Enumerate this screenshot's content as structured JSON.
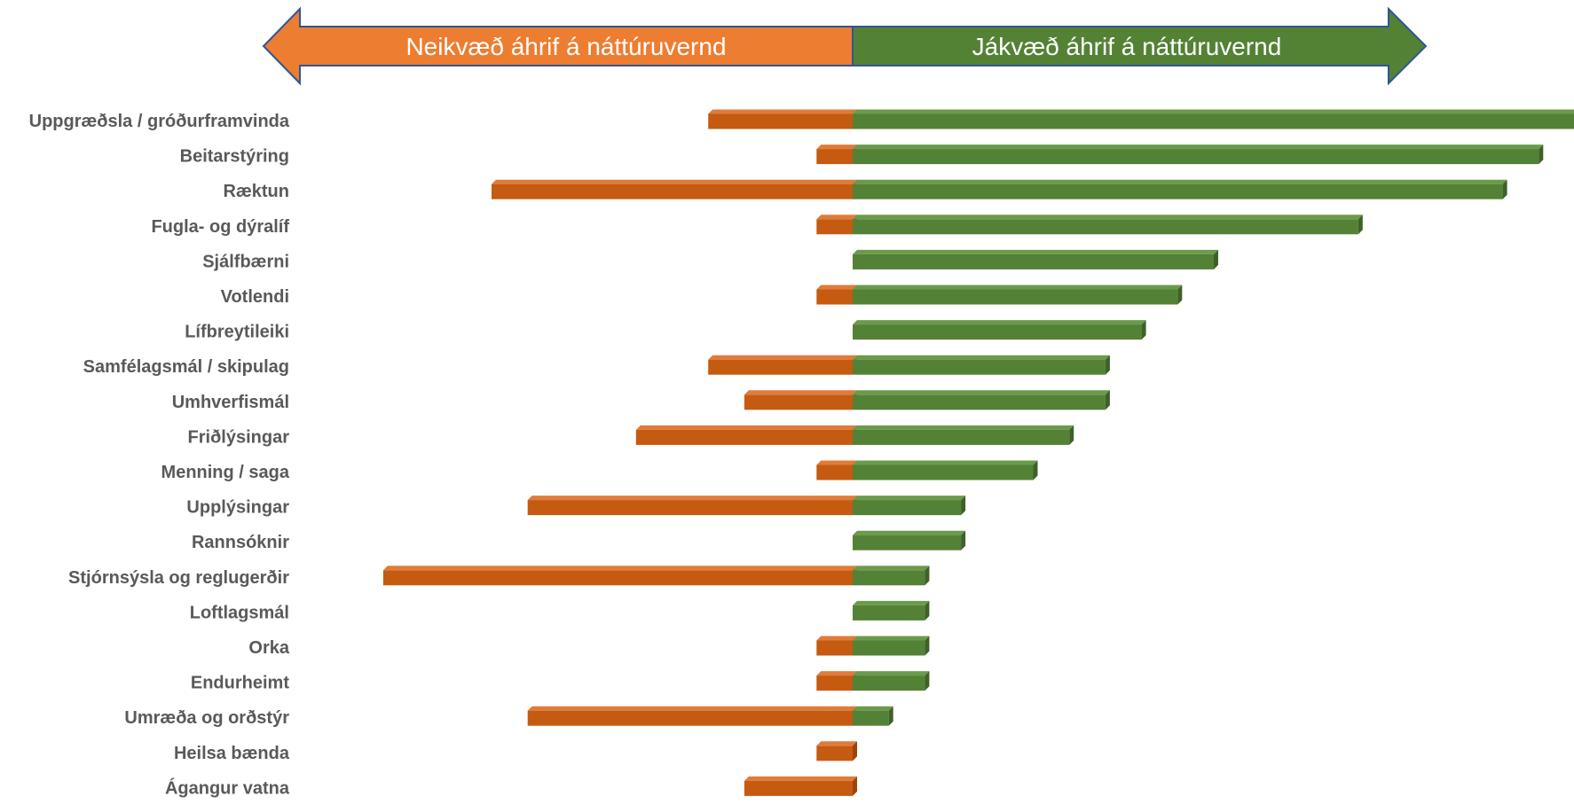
{
  "header": {
    "negative_label": "Neikvæð áhrif á náttúruvernd",
    "positive_label": "Jákvæð áhrif á náttúruvernd"
  },
  "colors": {
    "negative": "#C55A11",
    "negative_light": "#ED7D31",
    "positive": "#538135",
    "positive_light": "#548235",
    "arrow_border": "#2F5597"
  },
  "chart_data": {
    "type": "bar",
    "orientation": "horizontal",
    "stacked": "diverging",
    "categories": [
      "Uppgræðsla / gróðurframvinda",
      "Beitarstýring",
      "Ræktun",
      "Fugla- og dýralíf",
      "Sjálfbærni",
      "Votlendi",
      "Lífbreytileiki",
      "Samfélagsmál / skipulag",
      "Umhverfismál",
      "Friðlýsingar",
      "Menning / saga",
      "Upplýsingar",
      "Rannsóknir",
      "Stjórnsýsla og reglugerðir",
      "Loftlagsmál",
      "Orka",
      "Endurheimt",
      "Umræða og orðstýr",
      "Heilsa bænda",
      "Ágangur vatna"
    ],
    "series": [
      {
        "name": "Neikvæð áhrif á náttúruvernd",
        "values": [
          -4,
          -1,
          -10,
          -1,
          0,
          -1,
          0,
          -4,
          -3,
          -6,
          -1,
          -9,
          0,
          -13,
          0,
          -1,
          -1,
          -9,
          -1,
          -3
        ]
      },
      {
        "name": "Jákvæð áhrif á náttúruvernd",
        "values": [
          20,
          19,
          18,
          14,
          10,
          9,
          8,
          7,
          7,
          6,
          5,
          3,
          3,
          2,
          2,
          2,
          2,
          1,
          0,
          0
        ]
      }
    ],
    "xlim": [
      -13,
      20
    ]
  }
}
